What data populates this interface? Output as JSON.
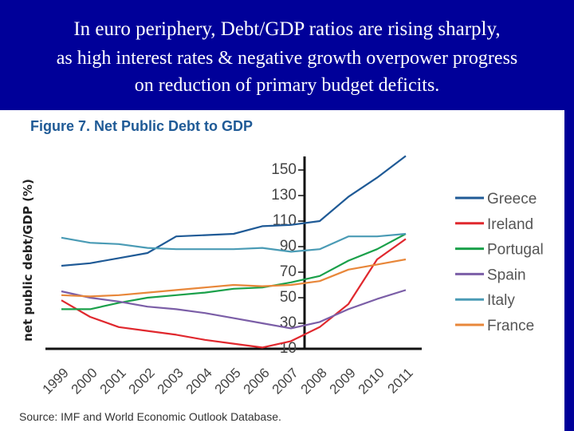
{
  "slide": {
    "title_line1": "In euro periphery, Debt/GDP ratios are rising sharply,",
    "title_line2": "as high interest rates & negative growth overpower progress",
    "title_line3": "on reduction of primary budget deficits.",
    "background_color": "#000099"
  },
  "chart_data": {
    "type": "line",
    "title": "Figure 7. Net Public Debt to GDP",
    "xlabel": "",
    "ylabel": "net public debt/GDP (%)",
    "source": "Source: IMF and World Economic Outlook Database.",
    "x": [
      "1999",
      "2000",
      "2001",
      "2002",
      "2003",
      "2004",
      "2005",
      "2006",
      "2007",
      "2008",
      "2009",
      "2010",
      "2011"
    ],
    "y_ticks": [
      10,
      30,
      50,
      70,
      90,
      110,
      130,
      150
    ],
    "ylim": [
      10,
      160
    ],
    "grid": false,
    "legend_position": "right",
    "series": [
      {
        "name": "Greece",
        "color": "#1f5a96",
        "values": [
          75,
          77,
          81,
          85,
          98,
          99,
          100,
          106,
          107,
          110,
          129,
          144,
          161
        ]
      },
      {
        "name": "Ireland",
        "color": "#e0282e",
        "values": [
          48,
          35,
          27,
          24,
          21,
          17,
          14,
          11,
          16,
          27,
          45,
          80,
          96
        ]
      },
      {
        "name": "Portugal",
        "color": "#1aa04a",
        "values": [
          41,
          41,
          46,
          50,
          52,
          54,
          57,
          58,
          62,
          67,
          79,
          88,
          100
        ]
      },
      {
        "name": "Spain",
        "color": "#7b5ea7",
        "values": [
          55,
          50,
          47,
          43,
          41,
          38,
          34,
          30,
          26,
          31,
          41,
          49,
          56
        ]
      },
      {
        "name": "Italy",
        "color": "#4a9bb5",
        "values": [
          97,
          93,
          92,
          89,
          88,
          88,
          88,
          89,
          86,
          88,
          98,
          98,
          100
        ]
      },
      {
        "name": "France",
        "color": "#e8873a",
        "values": [
          52,
          51,
          52,
          54,
          56,
          58,
          60,
          59,
          60,
          63,
          72,
          76,
          80
        ]
      }
    ]
  }
}
